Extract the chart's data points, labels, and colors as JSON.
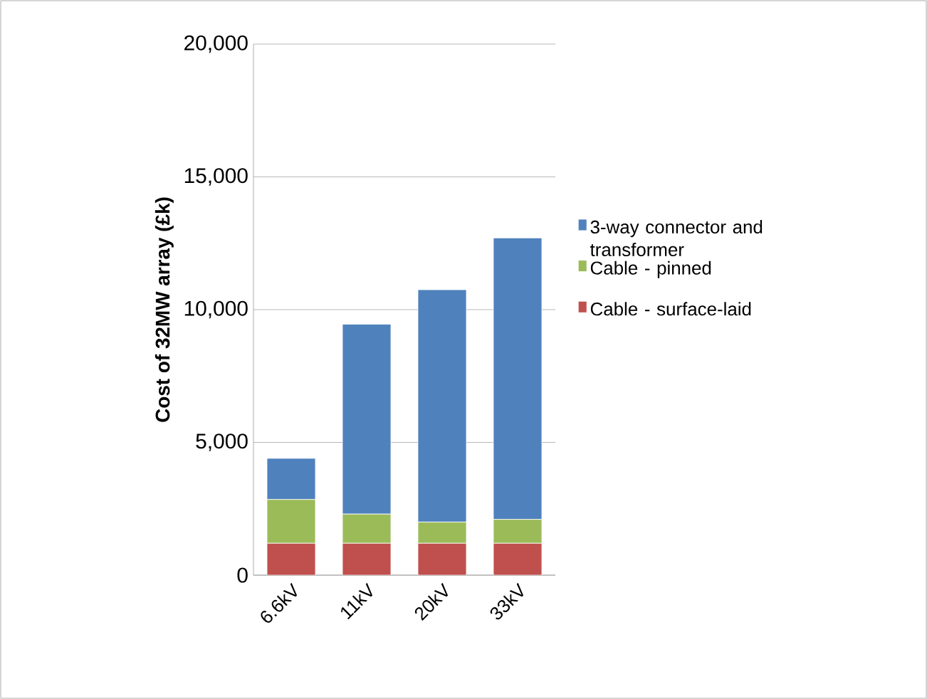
{
  "chart_data": {
    "type": "bar",
    "stacked": true,
    "ylabel": "Cost of 32MW array (£k)",
    "categories": [
      "6.6kV",
      "11kV",
      "20kV",
      "33kV"
    ],
    "series": [
      {
        "name": "Cable - surface-laid",
        "color": "#c0504d",
        "values": [
          1200,
          1200,
          1200,
          1200
        ]
      },
      {
        "name": "Cable - pinned",
        "color": "#9bbb59",
        "values": [
          1650,
          1100,
          800,
          900
        ]
      },
      {
        "name": "3-way connector and transformer",
        "color": "#4f81bd",
        "values": [
          1550,
          7150,
          8750,
          10600
        ]
      }
    ],
    "ylim": [
      0,
      20000
    ],
    "yticks": [
      {
        "value": 0,
        "label": "0"
      },
      {
        "value": 5000,
        "label": "5,000"
      },
      {
        "value": 10000,
        "label": "10,000"
      },
      {
        "value": 15000,
        "label": "15,000"
      },
      {
        "value": 20000,
        "label": "20,000"
      }
    ],
    "grid": "y",
    "legend": "right"
  }
}
